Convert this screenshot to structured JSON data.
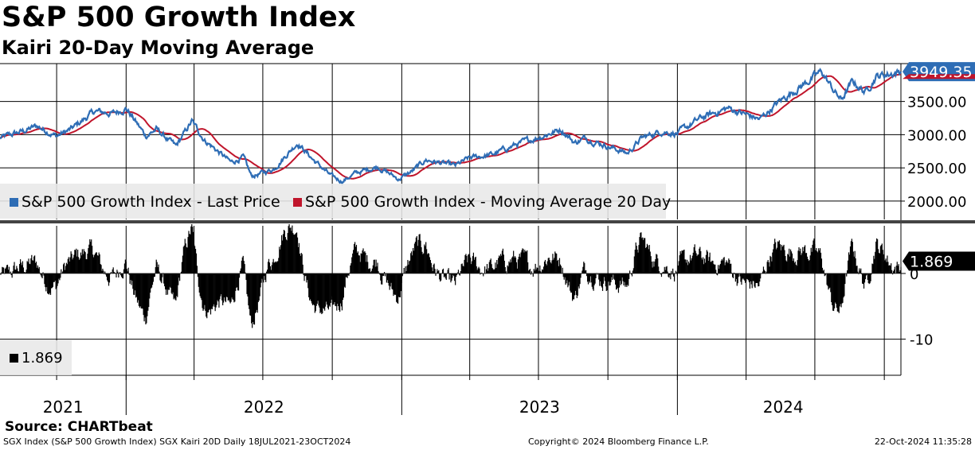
{
  "title": "S&P 500 Growth Index",
  "subtitle": "Kairi 20-Day Moving Average",
  "source": "Source: CHARTbeat",
  "footer": {
    "left": "SGX Index (S&P 500 Growth Index) SGX Kairi 20D  Daily 18JUL2021-23OCT2024",
    "center": "Copyright© 2024 Bloomberg Finance L.P.",
    "right": "22-Oct-2024 11:35:28"
  },
  "legend_top": {
    "last_price": "S&P 500 Growth Index - Last Price",
    "moving_average": "S&P 500 Growth Index - Moving Average 20 Day"
  },
  "legend_bottom": {
    "value": "1.869"
  },
  "chart_data": [
    {
      "type": "line",
      "panel": "price",
      "series": [
        {
          "name": "S&P 500 Growth Index - Last Price",
          "color": "#2e6db5"
        },
        {
          "name": "S&P 500 Growth Index - Moving Average 20 Day",
          "color": "#c0152b"
        }
      ],
      "x_start": "2021-07-18",
      "x_end": "2024-10-23",
      "last_price_anchors": [
        [
          "2021-07-18",
          2950
        ],
        [
          "2021-08-20",
          3060
        ],
        [
          "2021-09-05",
          3130
        ],
        [
          "2021-10-01",
          2980
        ],
        [
          "2021-10-20",
          3080
        ],
        [
          "2021-11-20",
          3350
        ],
        [
          "2021-12-15",
          3320
        ],
        [
          "2022-01-01",
          3400
        ],
        [
          "2022-01-27",
          2980
        ],
        [
          "2022-02-10",
          3080
        ],
        [
          "2022-03-08",
          2820
        ],
        [
          "2022-03-29",
          3200
        ],
        [
          "2022-04-15",
          2920
        ],
        [
          "2022-05-20",
          2580
        ],
        [
          "2022-06-05",
          2660
        ],
        [
          "2022-06-16",
          2370
        ],
        [
          "2022-07-15",
          2480
        ],
        [
          "2022-08-16",
          2880
        ],
        [
          "2022-09-06",
          2620
        ],
        [
          "2022-09-30",
          2370
        ],
        [
          "2022-10-14",
          2300
        ],
        [
          "2022-11-01",
          2420
        ],
        [
          "2022-11-30",
          2520
        ],
        [
          "2022-12-28",
          2330
        ],
        [
          "2023-01-15",
          2450
        ],
        [
          "2023-02-02",
          2620
        ],
        [
          "2023-03-13",
          2530
        ],
        [
          "2023-04-01",
          2650
        ],
        [
          "2023-05-01",
          2700
        ],
        [
          "2023-06-01",
          2850
        ],
        [
          "2023-07-01",
          2960
        ],
        [
          "2023-07-31",
          3080
        ],
        [
          "2023-08-18",
          2880
        ],
        [
          "2023-09-01",
          2950
        ],
        [
          "2023-10-27",
          2720
        ],
        [
          "2023-11-15",
          2950
        ],
        [
          "2023-12-10",
          3050
        ],
        [
          "2024-01-01",
          3020
        ],
        [
          "2024-02-01",
          3250
        ],
        [
          "2024-03-08",
          3400
        ],
        [
          "2024-04-19",
          3230
        ],
        [
          "2024-05-15",
          3500
        ],
        [
          "2024-06-15",
          3750
        ],
        [
          "2024-07-10",
          3950
        ],
        [
          "2024-07-25",
          3680
        ],
        [
          "2024-08-05",
          3520
        ],
        [
          "2024-08-20",
          3800
        ],
        [
          "2024-09-06",
          3640
        ],
        [
          "2024-09-20",
          3880
        ],
        [
          "2024-10-10",
          3920
        ],
        [
          "2024-10-23",
          3949.35
        ]
      ],
      "last_value_label": "3949.35",
      "y_ticks": [
        "3500.00",
        "3000.00",
        "2500.00",
        "2000.00"
      ],
      "y_tick_values": [
        3500,
        3000,
        2500,
        2000
      ],
      "ylim": [
        1700,
        4070
      ]
    },
    {
      "type": "bar",
      "panel": "kairi",
      "series": [
        {
          "name": "SGX Kairi 20D",
          "color": "#000000"
        }
      ],
      "last_value_label": "1.869",
      "last_value": 1.869,
      "y_ticks": [
        "0",
        "-10"
      ],
      "y_tick_values": [
        0,
        -10
      ],
      "ylim": [
        -15.5,
        7.5
      ]
    }
  ],
  "x_axis": {
    "year_labels": [
      "2021",
      "2022",
      "2023",
      "2024"
    ]
  }
}
